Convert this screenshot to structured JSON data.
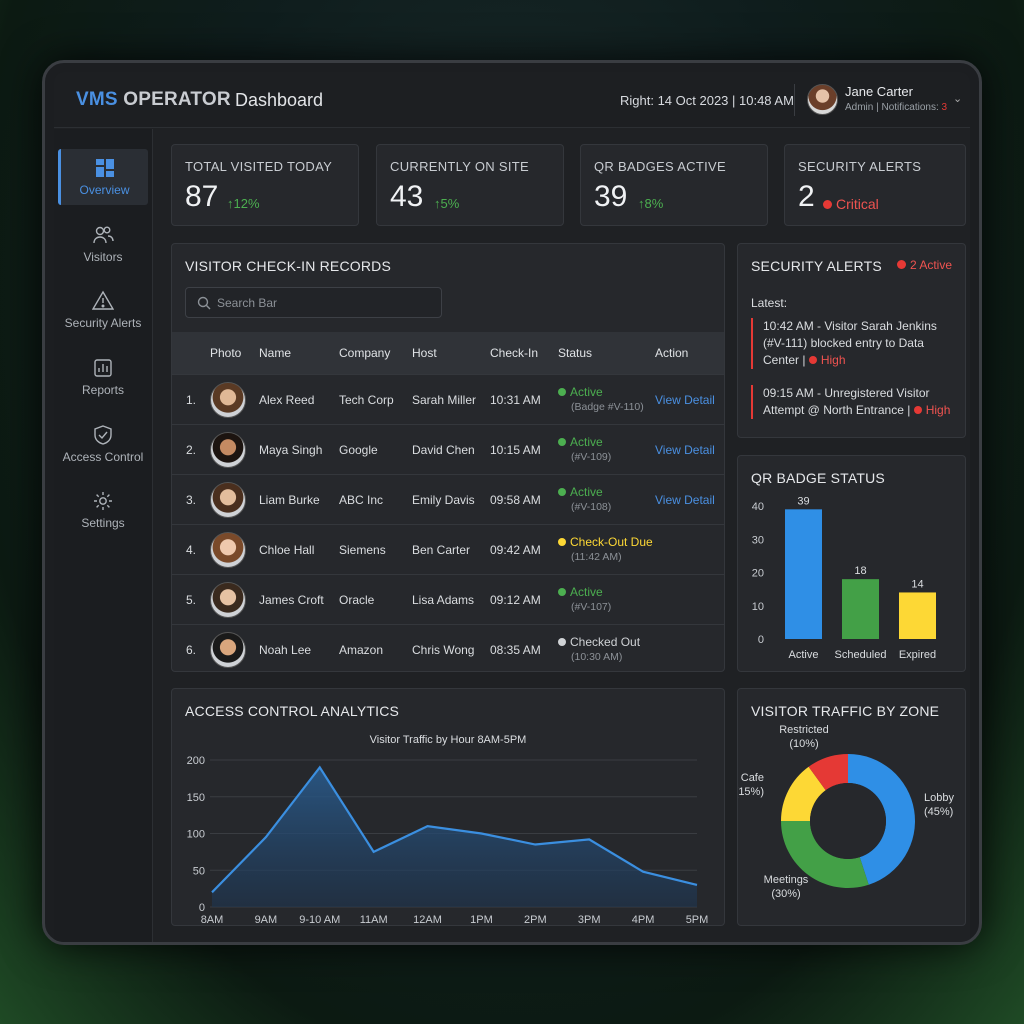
{
  "header": {
    "brand_part1": "VMS",
    "brand_part2": "OPERATOR",
    "page_title": "Dashboard",
    "datetime": "Right: 14 Oct 2023  | 10:48 AM",
    "user_name": "Jane Carter",
    "user_role": "Admin | Notifications: ",
    "notifications_count": "3"
  },
  "sidebar": {
    "items": [
      {
        "label": "Overview",
        "icon": "grid-icon"
      },
      {
        "label": "Visitors",
        "icon": "users-icon"
      },
      {
        "label": "Security Alerts",
        "icon": "warning-icon"
      },
      {
        "label": "Reports",
        "icon": "report-icon"
      },
      {
        "label": "Access Control",
        "icon": "shield-icon"
      },
      {
        "label": "Settings",
        "icon": "gear-icon"
      }
    ]
  },
  "kpis": [
    {
      "label": "TOTAL VISITED TODAY",
      "value": "87",
      "delta": "12%"
    },
    {
      "label": "CURRENTLY ON SITE",
      "value": "43",
      "delta": "5%"
    },
    {
      "label": "QR BADGES ACTIVE",
      "value": "39",
      "delta": "8%"
    },
    {
      "label": "SECURITY ALERTS",
      "value": "2",
      "status": "Critical"
    }
  ],
  "records": {
    "title": "VISITOR CHECK-IN RECORDS",
    "search_placeholder": "Search Bar",
    "columns": [
      "Photo",
      "Name",
      "Company",
      "Host",
      "Check-In",
      "Status",
      "Action"
    ],
    "rows": [
      {
        "num": "1.",
        "name": "Alex Reed",
        "company": "Tech Corp",
        "host": "Sarah Miller",
        "checkin": "10:31 AM",
        "status": "Active",
        "status_sub": "(Badge #V-110)",
        "status_color": "#4caf50",
        "action": "View Detail"
      },
      {
        "num": "2.",
        "name": "Maya Singh",
        "company": "Google",
        "host": "David Chen",
        "checkin": "10:15 AM",
        "status": "Active",
        "status_sub": "(#V-109)",
        "status_color": "#4caf50",
        "action": "View Detail"
      },
      {
        "num": "3.",
        "name": "Liam Burke",
        "company": "ABC Inc",
        "host": "Emily Davis",
        "checkin": "09:58 AM",
        "status": "Active",
        "status_sub": "(#V-108)",
        "status_color": "#4caf50",
        "action": "View Detail"
      },
      {
        "num": "4.",
        "name": "Chloe Hall",
        "company": "Siemens",
        "host": "Ben Carter",
        "checkin": "09:42 AM",
        "status": "Check-Out Due",
        "status_sub": "(11:42 AM)",
        "status_color": "#fdd835",
        "action": ""
      },
      {
        "num": "5.",
        "name": "James Croft",
        "company": "Oracle",
        "host": "Lisa Adams",
        "checkin": "09:12 AM",
        "status": "Active",
        "status_sub": "(#V-107)",
        "status_color": "#4caf50",
        "action": ""
      },
      {
        "num": "6.",
        "name": "Noah Lee",
        "company": "Amazon",
        "host": "Chris Wong",
        "checkin": "08:35 AM",
        "status": "Checked Out",
        "status_sub": "(10:30 AM)",
        "status_color": "#d0d3d6",
        "action": ""
      }
    ]
  },
  "alerts": {
    "title": "SECURITY ALERTS",
    "active": "2 Active",
    "latest_label": "Latest:",
    "items": [
      {
        "text": "10:42 AM - Visitor Sarah Jenkins (#V-111) blocked entry to Data Center | ",
        "level": "High"
      },
      {
        "text": "09:15 AM - Unregistered Visitor Attempt @ North Entrance | ",
        "level": "High"
      }
    ]
  },
  "badge_card": {
    "title": "QR BADGE STATUS"
  },
  "analytics_card": {
    "title": "ACCESS CONTROL ANALYTICS"
  },
  "zone_card": {
    "title": "VISITOR TRAFFIC BY ZONE"
  },
  "chart_data": [
    {
      "type": "bar",
      "title": "QR BADGE STATUS",
      "categories": [
        "Active",
        "Scheduled",
        "Expired"
      ],
      "values": [
        39,
        18,
        14
      ],
      "colors": [
        "#2f8fe6",
        "#43a047",
        "#fdd835"
      ],
      "ylim": [
        0,
        40
      ],
      "yticks": [
        0,
        10,
        20,
        30,
        40
      ],
      "grid": false
    },
    {
      "type": "area",
      "title": "Visitor Traffic by Hour 8AM-5PM",
      "x": [
        "8AM",
        "9AM",
        "9-10 AM",
        "11AM",
        "12AM",
        "1PM",
        "2PM",
        "3PM",
        "4PM",
        "5PM"
      ],
      "points": [
        {
          "x": 0,
          "y": 20
        },
        {
          "x": 1,
          "y": 95
        },
        {
          "x": 2,
          "y": 190
        },
        {
          "x": 3,
          "y": 75
        },
        {
          "x": 4,
          "y": 110
        },
        {
          "x": 5,
          "y": 100
        },
        {
          "x": 6,
          "y": 85
        },
        {
          "x": 7,
          "y": 92
        },
        {
          "x": 8,
          "y": 48
        },
        {
          "x": 9,
          "y": 30
        }
      ],
      "ylim": [
        0,
        200
      ],
      "yticks": [
        0,
        50,
        100,
        150,
        200
      ],
      "color": "#3b8fe0",
      "grid": true
    },
    {
      "type": "pie",
      "title": "VISITOR TRAFFIC BY ZONE",
      "slices": [
        {
          "name": "Lobby",
          "value": 45,
          "label": "(45%)",
          "color": "#2f8fe6"
        },
        {
          "name": "Meetings",
          "value": 30,
          "label": "(30%)",
          "color": "#43a047"
        },
        {
          "name": "Cafe",
          "value": 15,
          "label": "(15%)",
          "color": "#fdd835"
        },
        {
          "name": "Restricted",
          "value": 10,
          "label": "(10%)",
          "color": "#e53935"
        }
      ]
    }
  ]
}
